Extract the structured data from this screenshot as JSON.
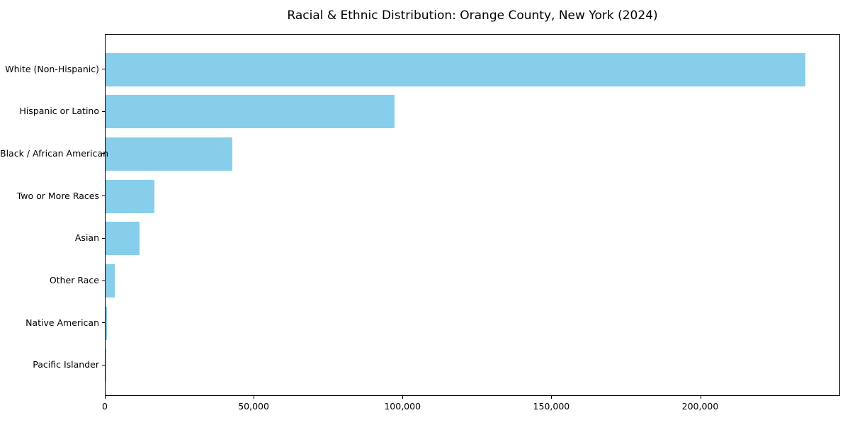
{
  "chart_data": {
    "type": "bar",
    "orientation": "horizontal",
    "title": "Racial & Ethnic Distribution: Orange County, New York (2024)",
    "categories": [
      "White (Non-Hispanic)",
      "Hispanic or Latino",
      "Black / African American",
      "Two or More Races",
      "Asian",
      "Other Race",
      "Native American",
      "Pacific Islander"
    ],
    "values": [
      235000,
      97000,
      42500,
      16300,
      11500,
      3200,
      400,
      100
    ],
    "xlabel": "",
    "ylabel": "",
    "xlim": [
      0,
      247000
    ],
    "xticks": [
      0,
      50000,
      100000,
      150000,
      200000
    ],
    "xtick_labels": [
      "0",
      "50,000",
      "100,000",
      "150,000",
      "200,000"
    ],
    "bar_color": "#87CEEB",
    "axis_color": "#000000",
    "background_color": "#ffffff",
    "grid": false,
    "legend": null
  }
}
